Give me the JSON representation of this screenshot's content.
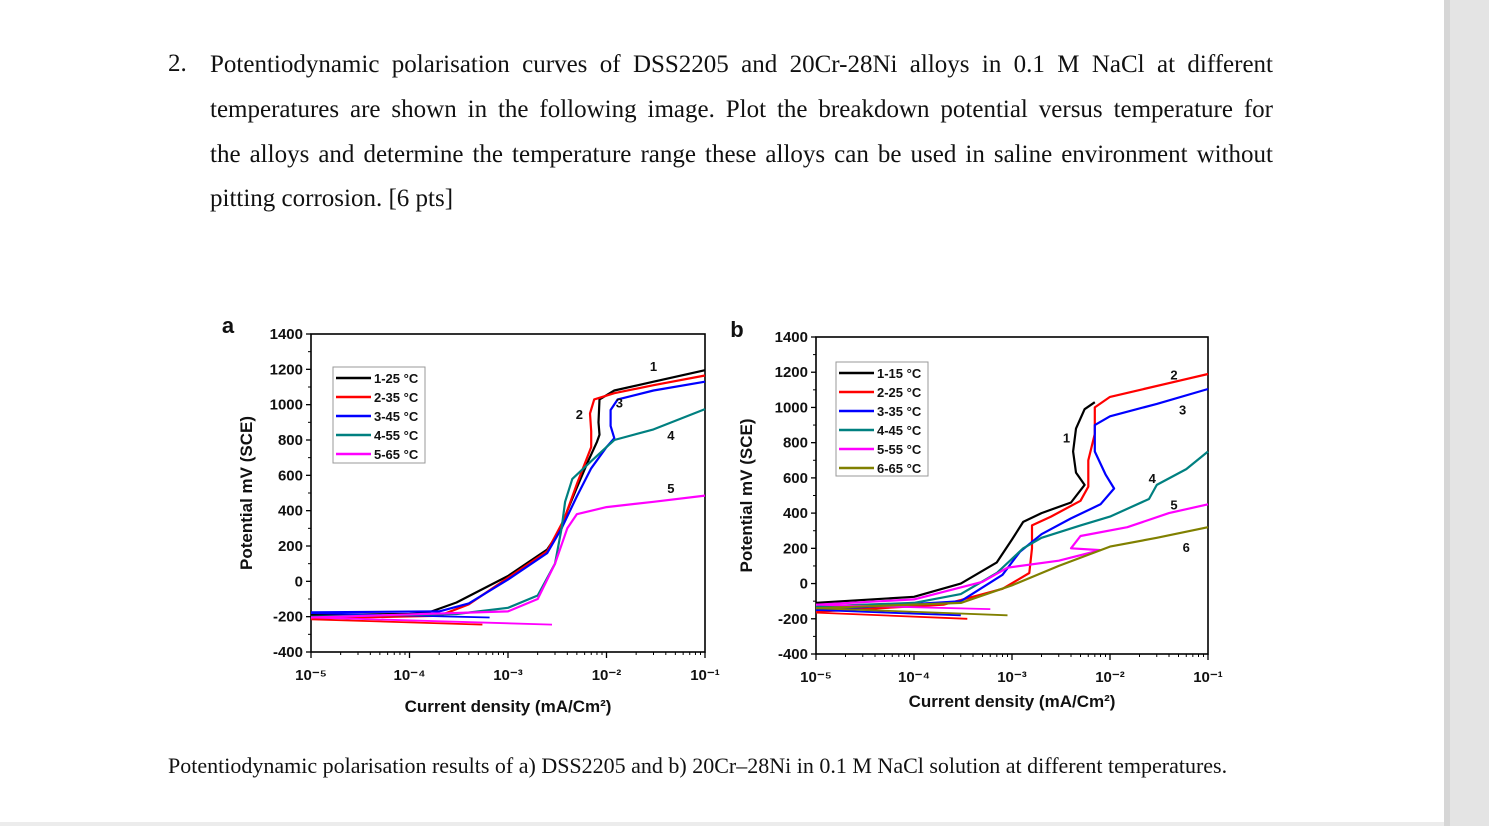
{
  "question": {
    "number": "2.",
    "lines": [
      "Potentiodynamic polarisation curves of DSS2205 and 20Cr-28Ni alloys in 0.1 M NaCl at different",
      "temperatures are shown in the following image. Plot the breakdown potential versus temperature for",
      "the alloys and determine the temperature range these alloys can be used in saline environment without",
      "pitting corrosion. [6 pts]"
    ]
  },
  "caption": "Potentiodynamic polarisation results of a) DSS2205 and b) 20Cr–28Ni in 0.1 M NaCl solution at different temperatures.",
  "chart_data": [
    {
      "panel_label": "a",
      "type": "line",
      "xlabel": "Current density (mA/Cm²)",
      "ylabel": "Potential mV (SCE)",
      "x_scale": "log",
      "xlim": [
        1e-05,
        0.1
      ],
      "ylim": [
        -400,
        1400
      ],
      "x_ticks": [
        "10⁻⁵",
        "10⁻⁴",
        "10⁻³",
        "10⁻²",
        "10⁻¹"
      ],
      "y_ticks": [
        1400,
        1200,
        1000,
        800,
        600,
        400,
        200,
        0,
        -200,
        -400
      ],
      "legend_position": "top-left",
      "series": [
        {
          "name": "1-25 °C",
          "label": "1",
          "color": "#000000",
          "label_at": [
            0.03,
            1190
          ],
          "points": [
            [
              1e-05,
              -190
            ],
            [
              0.0001,
              -185
            ],
            [
              0.00015,
              -180
            ],
            [
              0.0003,
              -120
            ],
            [
              0.001,
              30
            ],
            [
              0.0025,
              180
            ],
            [
              0.0035,
              300
            ],
            [
              0.004,
              400
            ],
            [
              0.005,
              530
            ],
            [
              0.0065,
              680
            ],
            [
              0.008,
              790
            ],
            [
              0.0085,
              830
            ],
            [
              0.0083,
              900
            ],
            [
              0.0085,
              1030
            ],
            [
              0.012,
              1080
            ],
            [
              0.03,
              1130
            ],
            [
              0.1,
              1195
            ]
          ],
          "tail": []
        },
        {
          "name": "2-35 °C",
          "label": "2",
          "color": "#ff0000",
          "label_at": [
            0.0053,
            920
          ],
          "points": [
            [
              1e-05,
              -210
            ],
            [
              0.0002,
              -195
            ],
            [
              0.0004,
              -130
            ],
            [
              0.001,
              20
            ],
            [
              0.0025,
              170
            ],
            [
              0.0037,
              350
            ],
            [
              0.005,
              550
            ],
            [
              0.007,
              760
            ],
            [
              0.007,
              850
            ],
            [
              0.0068,
              950
            ],
            [
              0.0075,
              1030
            ],
            [
              0.012,
              1065
            ],
            [
              0.03,
              1110
            ],
            [
              0.1,
              1165
            ]
          ],
          "tail": [
            [
              1e-05,
              -215
            ],
            [
              0.00055,
              -245
            ]
          ]
        },
        {
          "name": "3-45 °C",
          "label": "3",
          "color": "#0000ff",
          "label_at": [
            0.0135,
            985
          ],
          "points": [
            [
              1e-05,
              -175
            ],
            [
              0.0002,
              -170
            ],
            [
              0.0004,
              -125
            ],
            [
              0.001,
              10
            ],
            [
              0.0025,
              160
            ],
            [
              0.0035,
              300
            ],
            [
              0.005,
              480
            ],
            [
              0.007,
              640
            ],
            [
              0.01,
              760
            ],
            [
              0.012,
              810
            ],
            [
              0.011,
              880
            ],
            [
              0.011,
              970
            ],
            [
              0.013,
              1030
            ],
            [
              0.03,
              1080
            ],
            [
              0.1,
              1130
            ]
          ],
          "tail": [
            [
              1e-05,
              -180
            ],
            [
              0.00065,
              -205
            ]
          ]
        },
        {
          "name": "4-55 °C",
          "label": "4",
          "color": "#008080",
          "label_at": [
            0.045,
            800
          ],
          "points": [
            [
              1e-05,
              -200
            ],
            [
              0.0003,
              -185
            ],
            [
              0.001,
              -150
            ],
            [
              0.002,
              -80
            ],
            [
              0.003,
              100
            ],
            [
              0.0035,
              300
            ],
            [
              0.0038,
              450
            ],
            [
              0.0045,
              580
            ],
            [
              0.007,
              680
            ],
            [
              0.01,
              760
            ],
            [
              0.012,
              800
            ],
            [
              0.03,
              860
            ],
            [
              0.1,
              975
            ]
          ],
          "tail": []
        },
        {
          "name": "5-65 °C",
          "label": "5",
          "color": "#ff00ff",
          "label_at": [
            0.045,
            500
          ],
          "points": [
            [
              1e-05,
              -205
            ],
            [
              0.001,
              -170
            ],
            [
              0.002,
              -100
            ],
            [
              0.003,
              100
            ],
            [
              0.004,
              300
            ],
            [
              0.005,
              380
            ],
            [
              0.01,
              420
            ],
            [
              0.03,
              450
            ],
            [
              0.1,
              485
            ]
          ],
          "tail": [
            [
              1e-05,
              -205
            ],
            [
              0.0028,
              -245
            ]
          ]
        }
      ]
    },
    {
      "panel_label": "b",
      "type": "line",
      "xlabel": "Current density (mA/Cm²)",
      "ylabel": "Potential mV (SCE)",
      "x_scale": "log",
      "xlim": [
        1e-05,
        0.1
      ],
      "ylim": [
        -400,
        1400
      ],
      "x_ticks": [
        "10⁻⁵",
        "10⁻⁴",
        "10⁻³",
        "10⁻²",
        "10⁻¹"
      ],
      "y_ticks": [
        1400,
        1200,
        1000,
        800,
        600,
        400,
        200,
        0,
        -200,
        -400
      ],
      "legend_position": "top-left",
      "series": [
        {
          "name": "1-15 °C",
          "label": "1",
          "color": "#000000",
          "label_at": [
            0.0036,
            800
          ],
          "points": [
            [
              1e-05,
              -110
            ],
            [
              0.0001,
              -75
            ],
            [
              0.0003,
              0
            ],
            [
              0.0007,
              120
            ],
            [
              0.001,
              250
            ],
            [
              0.0013,
              350
            ],
            [
              0.002,
              400
            ],
            [
              0.004,
              460
            ],
            [
              0.0055,
              560
            ],
            [
              0.0045,
              630
            ],
            [
              0.0042,
              750
            ],
            [
              0.0045,
              880
            ],
            [
              0.0055,
              990
            ],
            [
              0.007,
              1030
            ]
          ],
          "tail": []
        },
        {
          "name": "2-25 °C",
          "label": "2",
          "color": "#ff0000",
          "label_at": [
            0.045,
            1160
          ],
          "points": [
            [
              1e-05,
              -160
            ],
            [
              0.0002,
              -120
            ],
            [
              0.0008,
              -30
            ],
            [
              0.0015,
              60
            ],
            [
              0.0016,
              200
            ],
            [
              0.0016,
              330
            ],
            [
              0.0025,
              380
            ],
            [
              0.005,
              470
            ],
            [
              0.006,
              550
            ],
            [
              0.006,
              700
            ],
            [
              0.007,
              850
            ],
            [
              0.007,
              1000
            ],
            [
              0.01,
              1060
            ],
            [
              0.1,
              1190
            ]
          ],
          "tail": [
            [
              1e-05,
              -165
            ],
            [
              0.00035,
              -200
            ]
          ]
        },
        {
          "name": "3-35 °C",
          "label": "3",
          "color": "#0000ff",
          "label_at": [
            0.055,
            960
          ],
          "points": [
            [
              1e-05,
              -150
            ],
            [
              0.0003,
              -100
            ],
            [
              0.0008,
              50
            ],
            [
              0.0012,
              180
            ],
            [
              0.002,
              280
            ],
            [
              0.004,
              370
            ],
            [
              0.008,
              450
            ],
            [
              0.011,
              540
            ],
            [
              0.009,
              620
            ],
            [
              0.007,
              750
            ],
            [
              0.007,
              900
            ],
            [
              0.01,
              950
            ],
            [
              0.03,
              1020
            ],
            [
              0.1,
              1105
            ]
          ],
          "tail": [
            [
              1e-05,
              -150
            ],
            [
              0.0003,
              -180
            ]
          ]
        },
        {
          "name": "4-45 °C",
          "label": "4",
          "color": "#008080",
          "label_at": [
            0.027,
            570
          ],
          "points": [
            [
              1e-05,
              -130
            ],
            [
              0.0001,
              -110
            ],
            [
              0.0003,
              -60
            ],
            [
              0.0007,
              60
            ],
            [
              0.0013,
              200
            ],
            [
              0.002,
              260
            ],
            [
              0.005,
              330
            ],
            [
              0.01,
              380
            ],
            [
              0.025,
              480
            ],
            [
              0.03,
              560
            ],
            [
              0.06,
              650
            ],
            [
              0.1,
              750
            ]
          ],
          "tail": []
        },
        {
          "name": "5-55 °C",
          "label": "5",
          "color": "#ff00ff",
          "label_at": [
            0.045,
            420
          ],
          "points": [
            [
              1e-05,
              -120
            ],
            [
              0.0001,
              -90
            ],
            [
              0.0005,
              10
            ],
            [
              0.0009,
              90
            ],
            [
              0.003,
              130
            ],
            [
              0.008,
              190
            ],
            [
              0.004,
              200
            ],
            [
              0.005,
              270
            ],
            [
              0.015,
              320
            ],
            [
              0.04,
              400
            ],
            [
              0.1,
              450
            ]
          ],
          "tail": [
            [
              1e-05,
              -120
            ],
            [
              0.0006,
              -145
            ]
          ]
        },
        {
          "name": "6-65 °C",
          "label": "6",
          "color": "#808000",
          "label_at": [
            0.06,
            180
          ],
          "points": [
            [
              1e-05,
              -140
            ],
            [
              0.0003,
              -110
            ],
            [
              0.001,
              -10
            ],
            [
              0.003,
              100
            ],
            [
              0.01,
              210
            ],
            [
              0.03,
              260
            ],
            [
              0.1,
              320
            ]
          ],
          "tail": [
            [
              1e-05,
              -140
            ],
            [
              0.0009,
              -180
            ]
          ]
        }
      ]
    }
  ]
}
